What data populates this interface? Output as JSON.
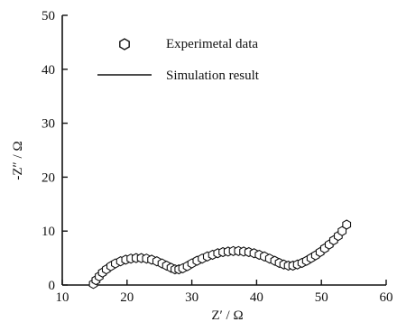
{
  "chart_data": {
    "type": "scatter",
    "title": "",
    "xlabel": "Z′ / Ω",
    "ylabel": "-Z″ / Ω",
    "xlim": [
      10,
      60
    ],
    "ylim": [
      0,
      50
    ],
    "x_ticks": [
      10,
      20,
      30,
      40,
      50,
      60
    ],
    "y_ticks": [
      0,
      10,
      20,
      30,
      40,
      50
    ],
    "grid": false,
    "legend": {
      "placement": "top-left",
      "entries": [
        {
          "label": "Experimetal data",
          "marker": "hexagon"
        },
        {
          "label": "Simulation result",
          "marker": "line"
        }
      ]
    },
    "series": [
      {
        "name": "Experimetal data",
        "marker": "hexagon",
        "color": "#111111",
        "x": [
          14.8,
          15.2,
          15.7,
          16.2,
          16.8,
          17.5,
          18.2,
          19.0,
          19.8,
          20.6,
          21.4,
          22.2,
          23.0,
          23.8,
          24.6,
          25.4,
          26.1,
          26.8,
          27.4,
          28.0,
          28.6,
          29.3,
          30.0,
          30.8,
          31.6,
          32.4,
          33.2,
          34.0,
          34.8,
          35.6,
          36.4,
          37.2,
          38.0,
          38.8,
          39.6,
          40.4,
          41.2,
          42.0,
          42.8,
          43.5,
          44.2,
          44.9,
          45.6,
          46.3,
          47.0,
          47.7,
          48.4,
          49.1,
          49.8,
          50.5,
          51.2,
          51.9,
          52.6,
          53.2,
          53.9
        ],
        "y": [
          0.2,
          0.9,
          1.6,
          2.3,
          2.9,
          3.5,
          4.0,
          4.4,
          4.7,
          4.9,
          5.0,
          5.0,
          4.9,
          4.7,
          4.4,
          4.0,
          3.6,
          3.2,
          2.9,
          2.9,
          3.1,
          3.5,
          4.0,
          4.5,
          4.9,
          5.3,
          5.6,
          5.9,
          6.1,
          6.2,
          6.3,
          6.3,
          6.2,
          6.1,
          5.9,
          5.6,
          5.3,
          4.9,
          4.5,
          4.1,
          3.8,
          3.6,
          3.6,
          3.8,
          4.1,
          4.5,
          5.0,
          5.5,
          6.1,
          6.8,
          7.5,
          8.3,
          9.1,
          10.0,
          11.2
        ]
      },
      {
        "name": "Simulation result",
        "marker": "line",
        "color": "#111111",
        "x": [
          14.4,
          14.8,
          15.2,
          15.7,
          16.2,
          16.8,
          17.5,
          18.2,
          19.0,
          19.8,
          20.6,
          21.4,
          22.2,
          23.0,
          23.8,
          24.6,
          25.4,
          26.1,
          26.8,
          27.4,
          28.0,
          28.6,
          29.3,
          30.0,
          30.8,
          31.6,
          32.4,
          33.2,
          34.0,
          34.8,
          35.6,
          36.4,
          37.2,
          38.0,
          38.8,
          39.6,
          40.4,
          41.2,
          42.0,
          42.8,
          43.5,
          44.2,
          44.9,
          45.6,
          46.3,
          47.0,
          47.7,
          48.4,
          49.1,
          49.8,
          50.5,
          51.2,
          51.9,
          52.6,
          53.2,
          53.9
        ],
        "y": [
          0.0,
          0.2,
          0.9,
          1.6,
          2.3,
          2.9,
          3.5,
          4.0,
          4.4,
          4.7,
          4.9,
          5.0,
          5.0,
          4.9,
          4.7,
          4.4,
          4.0,
          3.6,
          3.2,
          2.9,
          2.9,
          3.1,
          3.5,
          4.0,
          4.5,
          4.9,
          5.3,
          5.6,
          5.9,
          6.1,
          6.2,
          6.3,
          6.3,
          6.2,
          6.1,
          5.9,
          5.6,
          5.3,
          4.9,
          4.5,
          4.1,
          3.8,
          3.6,
          3.6,
          3.8,
          4.1,
          4.5,
          5.0,
          5.5,
          6.1,
          6.8,
          7.5,
          8.3,
          9.1,
          10.0,
          11.2
        ]
      }
    ]
  }
}
